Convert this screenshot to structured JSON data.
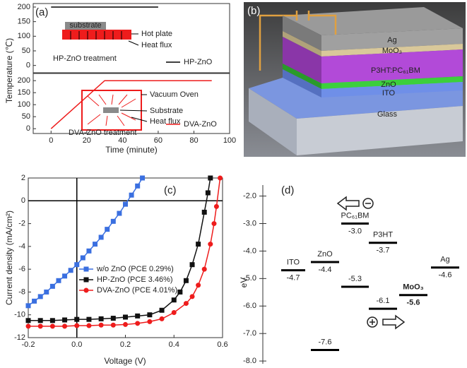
{
  "chart_data": [
    {
      "type": "line",
      "title": "(a)",
      "ylabel": "Temperature (℃)",
      "xlim": [
        -10,
        100
      ],
      "ylim": [
        -25,
        212
      ],
      "yticks": [
        0,
        50,
        100,
        150,
        200
      ],
      "grid": false,
      "series": [
        {
          "name": "HP-ZnO",
          "color": "#000000",
          "x": [
            0,
            60
          ],
          "values": [
            200,
            200
          ]
        }
      ],
      "annotations": [
        "substrate",
        "Hot plate",
        "Heat flux",
        "HP-ZnO treatment"
      ]
    },
    {
      "type": "line",
      "xlabel": "Time (minute)",
      "xlim": [
        -10,
        100
      ],
      "ylim": [
        -20,
        230
      ],
      "xticks": [
        0,
        20,
        40,
        60,
        80,
        100
      ],
      "yticks": [
        0,
        50,
        100,
        150,
        200
      ],
      "grid": false,
      "series": [
        {
          "name": "DVA-ZnO",
          "color": "#ee1c1c",
          "x": [
            0,
            30,
            90
          ],
          "values": [
            0,
            200,
            200
          ]
        }
      ],
      "annotations": [
        "Vacuum Oven",
        "Substrate",
        "Heat flux",
        "DVA-ZnO treatment"
      ]
    },
    {
      "type": "line",
      "title": "(c)",
      "xlabel": "Voltage (V)",
      "ylabel": "Current density (mA/cm²)",
      "xlim": [
        -0.2,
        0.6
      ],
      "ylim": [
        -12,
        2
      ],
      "xticks": [
        -0.2,
        {
          "value": 0,
          "label": "0.0"
        },
        0.2,
        0.4,
        0.6
      ],
      "yticks": [
        2,
        0,
        -2,
        -4,
        -6,
        -8,
        -10,
        -12
      ],
      "grid": false,
      "zero_lines": true,
      "series": [
        {
          "name": "w/o ZnO (PCE 0.29%)",
          "color": "#3a6fe0",
          "marker": "square",
          "x": [
            -0.2,
            -0.175,
            -0.15,
            -0.125,
            -0.1,
            -0.075,
            -0.05,
            -0.025,
            0,
            0.025,
            0.05,
            0.075,
            0.1,
            0.125,
            0.15,
            0.175,
            0.2,
            0.225,
            0.25,
            0.27
          ],
          "values": [
            -9.2,
            -8.8,
            -8.4,
            -8.0,
            -7.5,
            -7.0,
            -6.6,
            -6.1,
            -5.6,
            -5.0,
            -4.4,
            -3.8,
            -3.2,
            -2.5,
            -1.8,
            -1.1,
            -0.3,
            0.5,
            1.3,
            2.0
          ]
        },
        {
          "name": "HP-ZnO (PCE 3.46%)",
          "color": "#111111",
          "marker": "square",
          "x": [
            -0.2,
            -0.15,
            -0.1,
            -0.05,
            0,
            0.05,
            0.1,
            0.15,
            0.2,
            0.25,
            0.3,
            0.35,
            0.4,
            0.425,
            0.45,
            0.475,
            0.5,
            0.525,
            0.54,
            0.55
          ],
          "values": [
            -10.5,
            -10.5,
            -10.5,
            -10.45,
            -10.4,
            -10.4,
            -10.35,
            -10.3,
            -10.2,
            -10.1,
            -10.0,
            -9.6,
            -8.7,
            -8.0,
            -7.0,
            -5.6,
            -3.8,
            -1.0,
            0.7,
            2.0
          ]
        },
        {
          "name": "DVA-ZnO (PCE 4.01%)",
          "color": "#ee1c1c",
          "marker": "circle",
          "x": [
            -0.2,
            -0.15,
            -0.1,
            -0.05,
            0,
            0.05,
            0.1,
            0.15,
            0.2,
            0.25,
            0.3,
            0.35,
            0.4,
            0.45,
            0.475,
            0.5,
            0.525,
            0.55,
            0.565,
            0.575,
            0.59
          ],
          "values": [
            -11.0,
            -11.0,
            -11.0,
            -11.0,
            -10.95,
            -10.95,
            -10.9,
            -10.9,
            -10.85,
            -10.75,
            -10.6,
            -10.35,
            -9.8,
            -9.0,
            -8.4,
            -7.4,
            -6.0,
            -3.8,
            -2.0,
            -0.5,
            2.0
          ]
        }
      ]
    },
    {
      "type": "energy_levels",
      "title": "(d)",
      "ylabel": "eV",
      "ylim": [
        -1.6,
        -8.1
      ],
      "yticks": [
        {
          "value": -2,
          "label": "-2.0"
        },
        {
          "value": -3,
          "label": "-3.0"
        },
        {
          "value": -4,
          "label": "-4.0"
        },
        {
          "value": -5,
          "label": "-5.0"
        },
        {
          "value": -6,
          "label": "-6.0"
        },
        {
          "value": -7,
          "label": "-7.0"
        },
        {
          "value": -8,
          "label": "-8.0"
        }
      ],
      "categories": [
        "ITO",
        "ZnO",
        "PC₆₁BM",
        null,
        "P3HT",
        null,
        "MoO₃",
        "Ag",
        null
      ],
      "values": [
        -4.7,
        -4.4,
        -3.0,
        -5.3,
        -3.7,
        -6.1,
        -5.6,
        -4.6,
        -7.6
      ],
      "value_labels": [
        "-4.7",
        "-4.4",
        "-3.0",
        "-5.3",
        "-3.7",
        "-6.1",
        "-5.6",
        "-4.6",
        "-7.6"
      ]
    }
  ],
  "diagram_b": {
    "label": "(b)",
    "layers": [
      "Ag",
      "MoO₃",
      "P3HT:PC₆₁BM",
      "ZnO",
      "ITO",
      "Glass"
    ]
  }
}
